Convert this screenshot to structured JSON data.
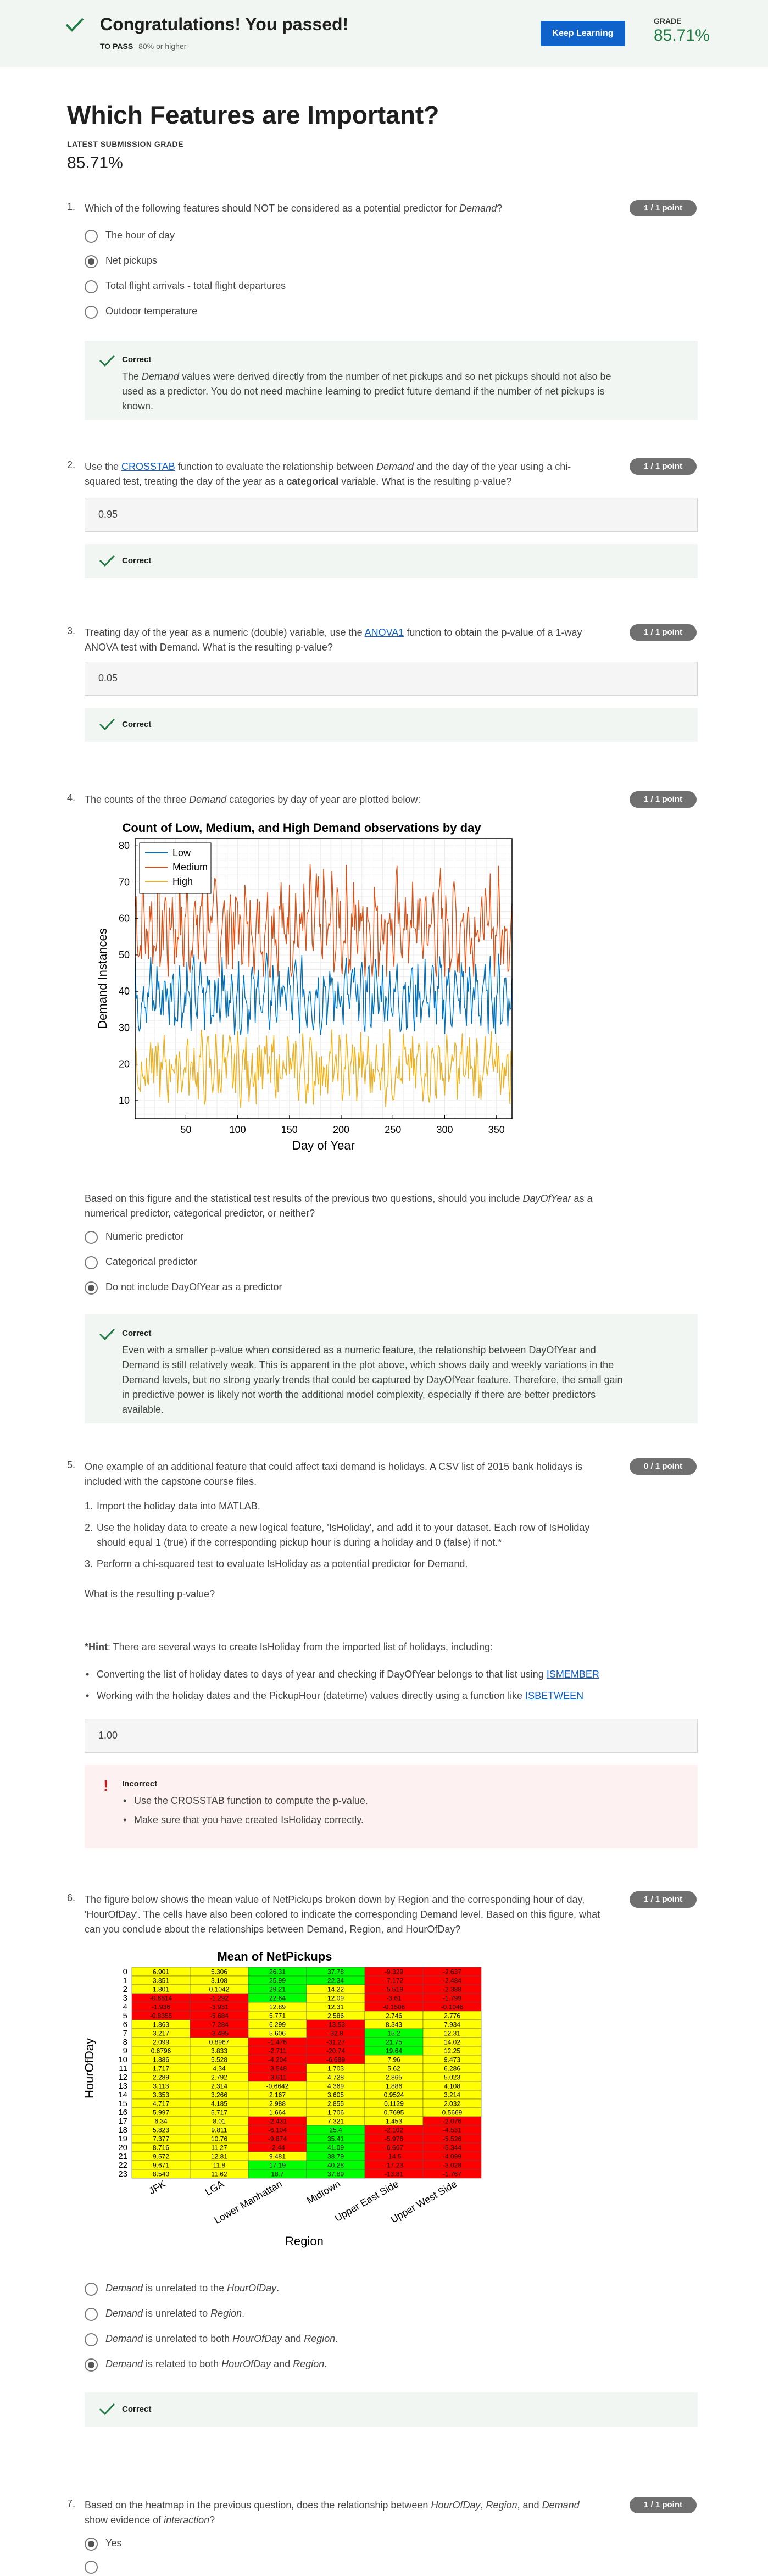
{
  "banner": {
    "title": "Congratulations! You passed!",
    "to_pass_label": "TO PASS",
    "to_pass_value": "80% or higher",
    "keep_learning": "Keep Learning",
    "grade_label": "GRADE",
    "grade_value": "85.71%"
  },
  "page": {
    "title": "Which Features are Important?",
    "latest_label": "LATEST SUBMISSION GRADE",
    "latest_value": "85.71%"
  },
  "q1": {
    "num": "1.",
    "text_a": "Which of the following features should NOT be considered as a potential predictor for ",
    "text_em": "Demand",
    "text_b": "?",
    "points": "1 / 1 point",
    "options": [
      "The hour of day",
      "Net pickups",
      "Total flight arrivals - total flight departures",
      "Outdoor temperature"
    ],
    "selected": 1,
    "fb_title": "Correct",
    "fb_a": "The ",
    "fb_em": "Demand",
    "fb_b": " values were derived directly from the number of net pickups and so net pickups should not also be used as a predictor. You do not need machine learning to predict future demand if the number of net pickups is known."
  },
  "q2": {
    "num": "2.",
    "t1": "Use the ",
    "link": "CROSSTAB",
    "t2": " function to evaluate the relationship between ",
    "em": "Demand",
    "t3": " and the day of the year using a chi-squared test, treating the day of the year as a ",
    "bold": "categorical",
    "t4": " variable. What is the resulting p-value?",
    "points": "1 / 1 point",
    "answer": "0.95",
    "fb_title": "Correct"
  },
  "q3": {
    "num": "3.",
    "t1": "Treating day of the year as a numeric (double) variable, use the ",
    "link": "ANOVA1",
    "t2": " function to obtain the p-value of a 1-way ANOVA test with Demand. What is the resulting p-value?",
    "points": "1 / 1 point",
    "answer": "0.05",
    "fb_title": "Correct"
  },
  "q4": {
    "num": "4.",
    "t1": "The counts of the three ",
    "em": "Demand",
    "t2": " categories by day of year are plotted below:",
    "points": "1 / 1 point",
    "chart_data": {
      "type": "line",
      "title": "Count of Low, Medium, and High Demand observations by day",
      "xlabel": "Day of Year",
      "ylabel": "Demand Instances",
      "xlim": [
        1,
        365
      ],
      "ylim": [
        5,
        82
      ],
      "xticks": [
        50,
        100,
        150,
        200,
        250,
        300,
        350
      ],
      "yticks": [
        10,
        20,
        30,
        40,
        50,
        60,
        70,
        80
      ],
      "grid": true,
      "legend": "top-left",
      "series": [
        {
          "name": "Low",
          "color": "#0072bd",
          "mean": 39,
          "min": 28,
          "max": 52,
          "weekly_amp": 5
        },
        {
          "name": "Medium",
          "color": "#d95319",
          "mean": 58,
          "min": 44,
          "max": 80,
          "weekly_amp": 7
        },
        {
          "name": "High",
          "color": "#edb120",
          "mean": 19,
          "min": 8,
          "max": 32,
          "weekly_amp": 4
        }
      ]
    },
    "q_a": "Based on this figure and the statistical test results of the previous two questions, should you include ",
    "q_em": "DayOfYear",
    "q_b": " as a numerical predictor, categorical predictor, or neither?",
    "options": [
      "Numeric predictor",
      "Categorical predictor",
      "Do not include DayOfYear as a predictor"
    ],
    "selected": 2,
    "fb_title": "Correct",
    "fb_text": "Even with a smaller p-value when considered as a numeric feature, the relationship between DayOfYear and Demand is still relatively weak. This is apparent in the plot above, which shows daily and weekly variations in the Demand levels, but no strong yearly trends that could be captured by DayOfYear feature. Therefore, the small gain in predictive power is likely not worth the additional model complexity, especially if there are better predictors available."
  },
  "q5": {
    "num": "5.",
    "text": "One example of an additional feature that could affect taxi demand is holidays. A CSV list of 2015 bank holidays is included with the capstone course files.",
    "points": "0 / 1 point",
    "steps": [
      "Import the holiday data into MATLAB.",
      "Use the holiday data to create a new logical feature, 'IsHoliday', and add it to your dataset. Each row of IsHoliday should equal 1 (true) if the corresponding pickup hour is during a holiday and 0 (false) if not.*",
      "Perform a chi-squared test to evaluate IsHoliday as a potential predictor for Demand."
    ],
    "ask": "What is the resulting p-value?",
    "hint_bold": "*Hint",
    "hint_text": ": There are several ways to create IsHoliday from the imported list of holidays, including:",
    "hint1_a": "Converting the list of holiday dates to days of year and checking if DayOfYear belongs to that list using ",
    "hint1_link": "ISMEMBER",
    "hint2_a": "Working with the holiday dates and the PickupHour (datetime) values directly using a function like ",
    "hint2_link": "ISBETWEEN",
    "answer": "1.00",
    "fb_title": "Incorrect",
    "fb_items": [
      "Use the CROSSTAB function to compute the p-value.",
      "Make sure that you have created IsHoliday correctly."
    ]
  },
  "q6": {
    "num": "6.",
    "text": "The figure below shows the mean value of NetPickups broken down by Region and the corresponding hour of day, 'HourOfDay'. The cells have also been colored to indicate the corresponding Demand level. Based on this figure, what can you conclude about the relationships between Demand, Region, and HourOfDay?",
    "points": "1 / 1 point",
    "chart_data": {
      "type": "heatmap",
      "title": "Mean of NetPickups",
      "xlabel": "Region",
      "ylabel": "HourOfDay",
      "columns": [
        "JFK",
        "LGA",
        "Lower Manhattan",
        "Midtown",
        "Upper East Side",
        "Upper West Side"
      ],
      "rows": [
        "0",
        "1",
        "2",
        "3",
        "4",
        "5",
        "6",
        "7",
        "8",
        "9",
        "10",
        "11",
        "12",
        "13",
        "14",
        "15",
        "16",
        "17",
        "18",
        "19",
        "20",
        "21",
        "22",
        "23"
      ],
      "values": [
        [
          "6.901",
          "5.306",
          "26.31",
          "37.78",
          "-9.329",
          "-2.637"
        ],
        [
          "3.851",
          "3.108",
          "25.99",
          "22.34",
          "-7.172",
          "-2.484"
        ],
        [
          "1.801",
          "0.1042",
          "29.21",
          "14.22",
          "-5.519",
          "-2.388"
        ],
        [
          "-0.6814",
          "-1.292",
          "22.64",
          "12.09",
          "-3.61",
          "-1.799"
        ],
        [
          "-1.936",
          "-3.931",
          "12.89",
          "12.31",
          "-0.1506",
          "-0.1046"
        ],
        [
          "-0.8355",
          "-5.684",
          "5.771",
          "2.586",
          "2.746",
          "2.776"
        ],
        [
          "1.863",
          "-7.284",
          "6.299",
          "-13.53",
          "8.343",
          "7.934"
        ],
        [
          "3.217",
          "-3.495",
          "5.606",
          "-32.8",
          "15.2",
          "12.31"
        ],
        [
          "2.099",
          "0.8967",
          "-1.476",
          "-31.27",
          "21.75",
          "14.02"
        ],
        [
          "0.6796",
          "3.833",
          "-2.711",
          "-20.74",
          "19.64",
          "12.25"
        ],
        [
          "1.886",
          "5.528",
          "-4.204",
          "-6.689",
          "7.96",
          "9.473"
        ],
        [
          "1.717",
          "4.34",
          "-3.548",
          "1.703",
          "5.62",
          "6.286"
        ],
        [
          "2.289",
          "2.792",
          "-3.611",
          "4.728",
          "2.865",
          "5.023"
        ],
        [
          "3.113",
          "2.314",
          "-0.6642",
          "4.369",
          "1.886",
          "4.108"
        ],
        [
          "3.353",
          "3.266",
          "2.167",
          "3.605",
          "0.9524",
          "3.214"
        ],
        [
          "4.717",
          "4.185",
          "2.988",
          "2.855",
          "0.1129",
          "2.032"
        ],
        [
          "5.997",
          "5.717",
          "1.664",
          "1.706",
          "0.7695",
          "0.5669"
        ],
        [
          "6.34",
          "8.01",
          "-2.431",
          "7.321",
          "1.453",
          "-2.076"
        ],
        [
          "5.823",
          "9.811",
          "-6.104",
          "25.4",
          "-2.102",
          "-4.531"
        ],
        [
          "7.377",
          "10.76",
          "-9.874",
          "35.41",
          "-5.976",
          "-5.526"
        ],
        [
          "8.716",
          "11.27",
          "-2.44",
          "41.09",
          "-6.667",
          "-5.344"
        ],
        [
          "9.572",
          "12.81",
          "9.481",
          "38.79",
          "-14.5",
          "-4.099"
        ],
        [
          "9.671",
          "11.8",
          "17.19",
          "40.28",
          "-17.23",
          "-3.028"
        ],
        [
          "8.540",
          "11.62",
          "18.7",
          "37.89",
          "-13.81",
          "-1.767"
        ]
      ],
      "levels": [
        [
          "Y",
          "Y",
          "G",
          "G",
          "R",
          "R"
        ],
        [
          "Y",
          "Y",
          "G",
          "G",
          "R",
          "R"
        ],
        [
          "Y",
          "Y",
          "G",
          "Y",
          "R",
          "R"
        ],
        [
          "R",
          "R",
          "G",
          "Y",
          "R",
          "R"
        ],
        [
          "R",
          "R",
          "Y",
          "Y",
          "R",
          "R"
        ],
        [
          "R",
          "R",
          "Y",
          "Y",
          "Y",
          "Y"
        ],
        [
          "Y",
          "R",
          "Y",
          "R",
          "Y",
          "Y"
        ],
        [
          "Y",
          "R",
          "Y",
          "R",
          "G",
          "Y"
        ],
        [
          "Y",
          "Y",
          "R",
          "R",
          "G",
          "Y"
        ],
        [
          "Y",
          "Y",
          "R",
          "R",
          "G",
          "Y"
        ],
        [
          "Y",
          "Y",
          "R",
          "R",
          "Y",
          "Y"
        ],
        [
          "Y",
          "Y",
          "R",
          "Y",
          "Y",
          "Y"
        ],
        [
          "Y",
          "Y",
          "R",
          "Y",
          "Y",
          "Y"
        ],
        [
          "Y",
          "Y",
          "Y",
          "Y",
          "Y",
          "Y"
        ],
        [
          "Y",
          "Y",
          "Y",
          "Y",
          "Y",
          "Y"
        ],
        [
          "Y",
          "Y",
          "Y",
          "Y",
          "Y",
          "Y"
        ],
        [
          "Y",
          "Y",
          "Y",
          "Y",
          "Y",
          "Y"
        ],
        [
          "Y",
          "Y",
          "R",
          "Y",
          "Y",
          "R"
        ],
        [
          "Y",
          "Y",
          "R",
          "G",
          "R",
          "R"
        ],
        [
          "Y",
          "Y",
          "R",
          "G",
          "R",
          "R"
        ],
        [
          "Y",
          "Y",
          "R",
          "G",
          "R",
          "R"
        ],
        [
          "Y",
          "Y",
          "Y",
          "G",
          "R",
          "R"
        ],
        [
          "Y",
          "Y",
          "G",
          "G",
          "R",
          "R"
        ],
        [
          "Y",
          "Y",
          "G",
          "G",
          "R",
          "R"
        ]
      ],
      "colors": {
        "G": "#00ff00",
        "Y": "#ffff00",
        "R": "#ff0000"
      }
    },
    "options": [
      [
        "Demand",
        " is unrelated to the ",
        "HourOfDay",
        "."
      ],
      [
        "Demand",
        " is unrelated to ",
        "Region",
        "."
      ],
      [
        "Demand",
        " is unrelated to both ",
        "HourOfDay",
        " and ",
        "Region",
        "."
      ],
      [
        "Demand",
        " is related to both ",
        "HourOfDay",
        " and ",
        "Region",
        "."
      ]
    ],
    "selected": 3,
    "fb_title": "Correct"
  },
  "q7": {
    "num": "7.",
    "t1": "Based on the heatmap in the previous question, does the relationship between ",
    "em1": "HourOfDay",
    "t2": ", ",
    "em2": "Region",
    "t3": ", and ",
    "em3": "Demand",
    "t4": " show evidence of ",
    "em4": "interaction",
    "t5": "?",
    "points": "1 / 1 point",
    "options": [
      "Yes"
    ],
    "selected": 0
  }
}
